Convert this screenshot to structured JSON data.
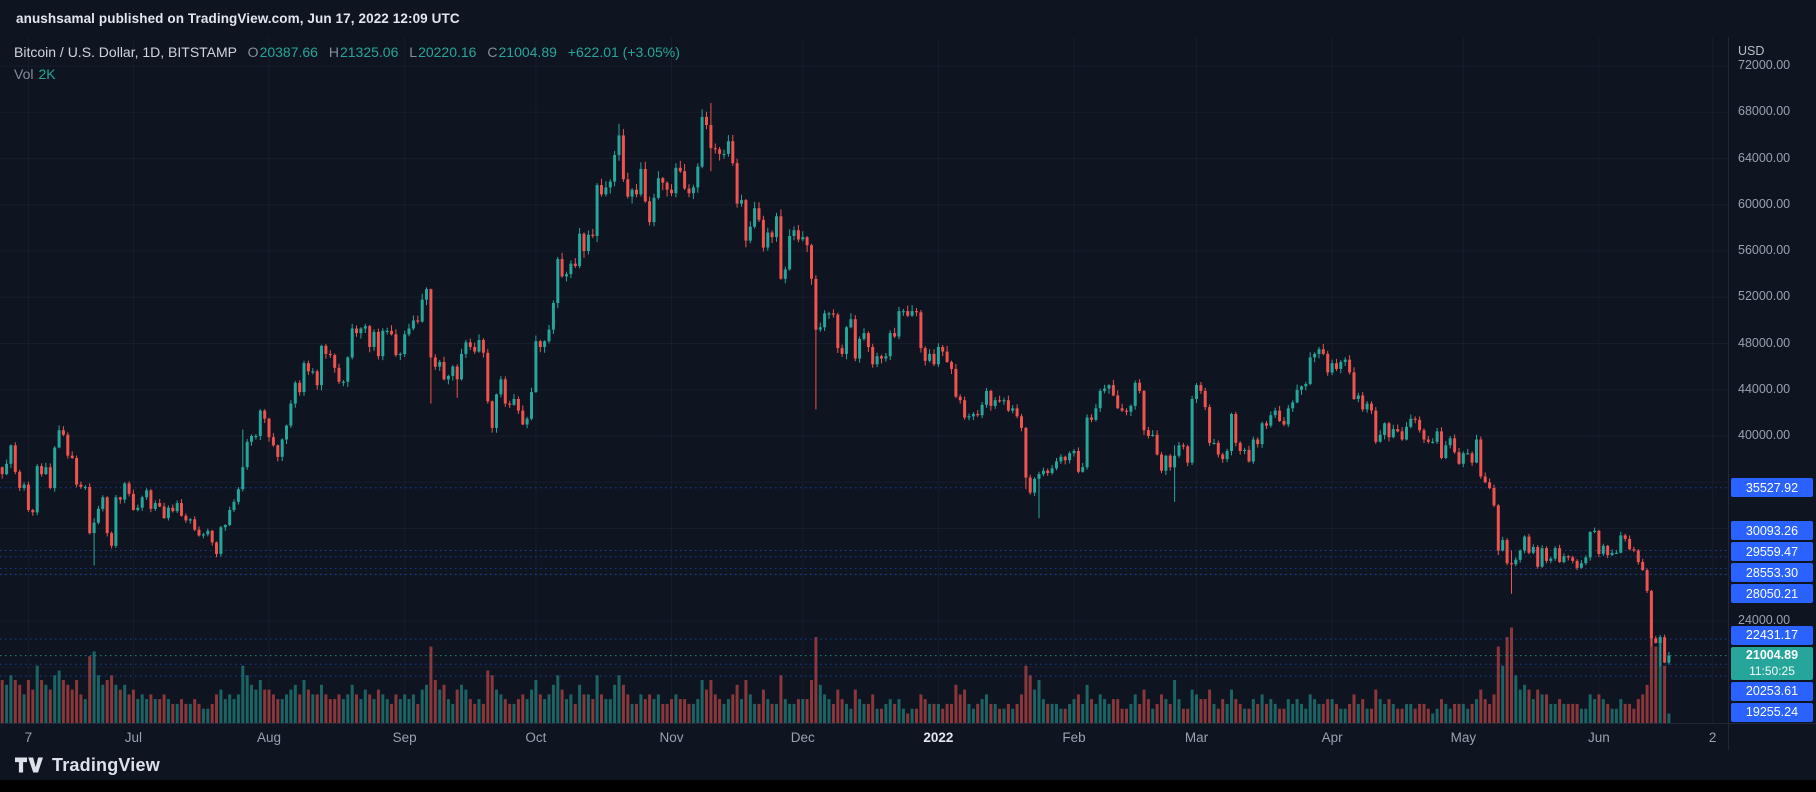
{
  "publish_bar": {
    "text": "anushsamal published on TradingView.com, Jun 17, 2022 12:09 UTC"
  },
  "legend": {
    "symbol": "Bitcoin / U.S. Dollar, 1D, BITSTAMP",
    "o_label": "O",
    "o": "20387.66",
    "h_label": "H",
    "h": "21325.06",
    "l_label": "L",
    "l": "20220.16",
    "c_label": "C",
    "c": "21004.89",
    "change": "+622.01 (+3.05%)",
    "vol_label": "Vol",
    "vol_value": "2K"
  },
  "price_axis": {
    "currency": "USD",
    "ticks": [
      72000,
      68000,
      64000,
      60000,
      56000,
      52000,
      48000,
      44000,
      40000,
      24000
    ],
    "alert_labels": [
      35527.92,
      30093.26,
      29559.47,
      28553.3,
      28050.21,
      22431.17,
      20253.61,
      19255.24
    ],
    "current": {
      "price": "21004.89",
      "countdown": "11:50:25"
    }
  },
  "time_axis": {
    "labels": [
      {
        "label": "7",
        "day": 6
      },
      {
        "label": "Jul",
        "day": 30
      },
      {
        "label": "Aug",
        "day": 61
      },
      {
        "label": "Sep",
        "day": 92
      },
      {
        "label": "Oct",
        "day": 122
      },
      {
        "label": "Nov",
        "day": 153
      },
      {
        "label": "Dec",
        "day": 183
      },
      {
        "label": "2022",
        "day": 214,
        "bold": true
      },
      {
        "label": "Feb",
        "day": 245
      },
      {
        "label": "Mar",
        "day": 273
      },
      {
        "label": "Apr",
        "day": 304
      },
      {
        "label": "May",
        "day": 334
      },
      {
        "label": "Jun",
        "day": 365
      },
      {
        "label": "2",
        "day": 391
      }
    ]
  },
  "footer": {
    "brand": "TradingView"
  },
  "colors": {
    "up": "#26a69a",
    "down": "#ef5350",
    "alert_blue": "#2962ff",
    "current_bg": "#26a69a",
    "grid": "rgba(160,172,196,0.06)"
  },
  "chart_data": {
    "type": "candlestick",
    "pair": "Bitcoin / U.S. Dollar",
    "exchange": "BITSTAMP",
    "interval": "1D",
    "ylabel": "USD",
    "y_ticks_step": 4000,
    "volume_unit": "K",
    "current_price": 21004.89,
    "first_open": 37300,
    "closes": [
      36700,
      37600,
      39200,
      36900,
      35500,
      35800,
      33600,
      33400,
      37400,
      36700,
      37300,
      35500,
      39000,
      40500,
      40100,
      38300,
      38100,
      35800,
      35600,
      35600,
      31600,
      32500,
      33700,
      34700,
      31600,
      30500,
      34700,
      34500,
      35900,
      35000,
      33600,
      33800,
      34700,
      35300,
      33700,
      34200,
      33900,
      32900,
      33800,
      33500,
      34200,
      33100,
      32700,
      32800,
      31900,
      31400,
      31500,
      31800,
      30800,
      29800,
      32100,
      32300,
      33600,
      34300,
      35400,
      37300,
      39500,
      40000,
      40000,
      42200,
      41500,
      39900,
      39200,
      38200,
      39700,
      40900,
      42800,
      44600,
      43800,
      46300,
      45600,
      45600,
      44400,
      47800,
      47100,
      47000,
      45900,
      44700,
      44700,
      46800,
      49300,
      48900,
      49300,
      49500,
      47700,
      49000,
      46900,
      49100,
      49100,
      48800,
      47000,
      47100,
      48800,
      49300,
      50000,
      49900,
      51800,
      52700,
      46800,
      46000,
      46400,
      44900,
      45200,
      46000,
      44900,
      47100,
      48100,
      47700,
      47300,
      48300,
      47200,
      43000,
      40700,
      43600,
      44900,
      42800,
      42700,
      43200,
      42200,
      41000,
      41500,
      43800,
      48200,
      47700,
      48200,
      49200,
      51500,
      55300,
      53800,
      54000,
      54900,
      54700,
      57500,
      56000,
      57400,
      57300,
      61700,
      60900,
      61500,
      62000,
      64300,
      66000,
      62200,
      60700,
      61300,
      60900,
      63100,
      60300,
      58500,
      60600,
      62300,
      61900,
      61300,
      61000,
      63200,
      62900,
      61400,
      61000,
      61500,
      63300,
      67600,
      66900,
      64900,
      64800,
      64400,
      64400,
      65500,
      63600,
      60100,
      60400,
      56900,
      58100,
      59700,
      58700,
      56300,
      57600,
      57200,
      59000,
      53600,
      54400,
      57300,
      57800,
      57000,
      57200,
      56500,
      53600,
      49200,
      49400,
      50600,
      50600,
      50500,
      47600,
      47100,
      49400,
      50100,
      46700,
      48400,
      48900,
      47700,
      46200,
      46900,
      46700,
      46900,
      48900,
      48600,
      50800,
      50800,
      50400,
      50800,
      50700,
      47600,
      46500,
      47100,
      46200,
      47700,
      47300,
      46400,
      45800,
      43400,
      43100,
      41600,
      41700,
      41900,
      41800,
      42700,
      43900,
      42600,
      43100,
      43000,
      43100,
      42200,
      42400,
      41700,
      40700,
      36400,
      35100,
      36300,
      36700,
      37000,
      36800,
      37200,
      37800,
      38200,
      37900,
      38500,
      38700,
      36900,
      37300,
      41600,
      41400,
      42400,
      43900,
      44100,
      44400,
      43500,
      42400,
      42200,
      42100,
      42600,
      44600,
      43900,
      40500,
      40000,
      40100,
      38400,
      37000,
      38300,
      37300,
      38300,
      39200,
      39100,
      37700,
      43200,
      44400,
      43900,
      42500,
      39400,
      39400,
      38400,
      38000,
      38700,
      41900,
      39400,
      38700,
      38800,
      37800,
      39700,
      39300,
      41100,
      40900,
      41800,
      42200,
      41300,
      41000,
      42400,
      42900,
      44000,
      44300,
      44500,
      46800,
      47100,
      47500,
      47100,
      45500,
      46300,
      45800,
      46400,
      46600,
      45500,
      43200,
      43500,
      42300,
      42800,
      42200,
      39500,
      40100,
      41100,
      39900,
      40600,
      40400,
      39700,
      40800,
      41500,
      41400,
      40500,
      39700,
      39500,
      39500,
      40400,
      38100,
      39200,
      39800,
      38600,
      37600,
      38500,
      38500,
      37700,
      39700,
      36500,
      36000,
      35500,
      34000,
      30100,
      31000,
      29000,
      28900,
      29300,
      30100,
      31300,
      29900,
      30400,
      28700,
      30300,
      29200,
      29400,
      30300,
      29100,
      29600,
      29500,
      29200,
      28600,
      29000,
      29500,
      31700,
      31800,
      29800,
      30500,
      29700,
      29900,
      29900,
      31400,
      31100,
      30200,
      30100,
      29100,
      28400,
      26600,
      22500,
      22100,
      22600,
      20400,
      21004.89
    ],
    "volumes": [
      9,
      8,
      10,
      9,
      8,
      6,
      9,
      7,
      12,
      9,
      8,
      7,
      10,
      11,
      9,
      8,
      7,
      9,
      6,
      5,
      14,
      15,
      10,
      8,
      9,
      10,
      8,
      7,
      8,
      6,
      7,
      5,
      6,
      5,
      6,
      5,
      5,
      6,
      5,
      4,
      4,
      5,
      4,
      4,
      5,
      4,
      3,
      3,
      4,
      6,
      7,
      5,
      6,
      5,
      6,
      12,
      10,
      8,
      7,
      9,
      7,
      7,
      6,
      5,
      5,
      6,
      7,
      8,
      6,
      9,
      7,
      6,
      6,
      8,
      6,
      5,
      5,
      6,
      5,
      6,
      8,
      6,
      5,
      7,
      6,
      5,
      7,
      6,
      5,
      4,
      6,
      5,
      6,
      5,
      6,
      4,
      7,
      8,
      16,
      9,
      7,
      8,
      5,
      4,
      7,
      8,
      7,
      5,
      4,
      5,
      4,
      11,
      10,
      7,
      6,
      5,
      4,
      4,
      5,
      6,
      5,
      7,
      9,
      6,
      5,
      6,
      8,
      10,
      7,
      5,
      6,
      4,
      8,
      6,
      6,
      5,
      10,
      6,
      5,
      5,
      8,
      10,
      8,
      6,
      4,
      4,
      6,
      5,
      6,
      5,
      6,
      4,
      4,
      5,
      6,
      5,
      5,
      4,
      4,
      5,
      9,
      7,
      9,
      6,
      5,
      4,
      5,
      6,
      8,
      5,
      9,
      6,
      4,
      4,
      7,
      5,
      4,
      4,
      10,
      5,
      4,
      4,
      5,
      5,
      5,
      9,
      18,
      8,
      6,
      5,
      4,
      7,
      5,
      4,
      3,
      7,
      5,
      4,
      4,
      6,
      3,
      3,
      4,
      5,
      4,
      5,
      3,
      2,
      3,
      3,
      6,
      5,
      4,
      4,
      4,
      3,
      4,
      4,
      8,
      6,
      7,
      4,
      3,
      4,
      5,
      6,
      4,
      4,
      3,
      3,
      4,
      3,
      4,
      6,
      12,
      10,
      7,
      9,
      5,
      4,
      4,
      4,
      3,
      3,
      4,
      5,
      6,
      4,
      8,
      5,
      4,
      6,
      5,
      4,
      5,
      5,
      3,
      3,
      4,
      6,
      4,
      7,
      5,
      3,
      4,
      6,
      5,
      4,
      9,
      5,
      3,
      3,
      7,
      6,
      5,
      5,
      7,
      4,
      3,
      5,
      4,
      7,
      5,
      4,
      3,
      3,
      5,
      4,
      6,
      4,
      5,
      4,
      3,
      3,
      5,
      4,
      5,
      4,
      3,
      6,
      5,
      4,
      4,
      5,
      5,
      4,
      3,
      3,
      4,
      6,
      4,
      5,
      3,
      3,
      7,
      5,
      4,
      5,
      4,
      3,
      3,
      4,
      4,
      3,
      4,
      4,
      3,
      2,
      3,
      5,
      4,
      3,
      4,
      4,
      4,
      3,
      4,
      5,
      7,
      5,
      4,
      6,
      16,
      12,
      18,
      20,
      10,
      7,
      8,
      7,
      5,
      7,
      6,
      6,
      4,
      4,
      5,
      4,
      4,
      4,
      4,
      3,
      3,
      6,
      5,
      6,
      5,
      4,
      3,
      3,
      5,
      4,
      4,
      3,
      5,
      6,
      8,
      22,
      16,
      18,
      12,
      2
    ],
    "wick_overrides": {
      "21": [
        32900,
        28800
      ],
      "55": [
        40550,
        35200
      ],
      "98": [
        52750,
        42800
      ],
      "104": [
        46200,
        43300
      ],
      "141": [
        67000,
        63800
      ],
      "162": [
        68789,
        62900
      ],
      "186": [
        53900,
        42300
      ],
      "234": [
        40800,
        35400
      ],
      "237": [
        36900,
        32900
      ],
      "268": [
        39200,
        34300
      ],
      "342": [
        34100,
        29700
      ],
      "345": [
        30100,
        26350
      ],
      "377": [
        26700,
        21800
      ],
      "379": [
        22800,
        20100
      ],
      "381": [
        21325.06,
        20220.16
      ]
    }
  }
}
